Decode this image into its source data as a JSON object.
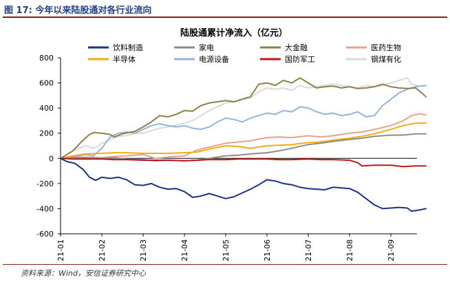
{
  "figure": {
    "title": "图 17:  今年以来陆股通对各行业流向",
    "source": "资料来源：Wind，安信证券研究中心"
  },
  "chart_data": {
    "type": "line",
    "title": "陆股通累计净流入（亿元）",
    "xlabel": "",
    "ylabel": "",
    "ylim": [
      -600,
      800
    ],
    "yticks": [
      "800",
      "600",
      "400",
      "200",
      "0",
      "-200",
      "-400",
      "-600"
    ],
    "xticks": [
      "21-01",
      "21-02",
      "21-03",
      "21-04",
      "21-05",
      "21-06",
      "21-07",
      "21-08",
      "21-09"
    ],
    "grid": false,
    "legend": "top",
    "x_note": "x values are fractional months since 21-01 (0 = 21-01, 8 = 21-09)",
    "series": [
      {
        "name": "饮料制造",
        "color": "#1a2f8c",
        "points": [
          [
            0,
            0
          ],
          [
            0.15,
            -25
          ],
          [
            0.35,
            -40
          ],
          [
            0.55,
            -90
          ],
          [
            0.7,
            -150
          ],
          [
            0.85,
            -175
          ],
          [
            1.0,
            -150
          ],
          [
            1.2,
            -160
          ],
          [
            1.4,
            -150
          ],
          [
            1.6,
            -170
          ],
          [
            1.8,
            -210
          ],
          [
            2.0,
            -215
          ],
          [
            2.2,
            -200
          ],
          [
            2.4,
            -230
          ],
          [
            2.6,
            -245
          ],
          [
            2.8,
            -240
          ],
          [
            3.0,
            -265
          ],
          [
            3.2,
            -310
          ],
          [
            3.4,
            -300
          ],
          [
            3.6,
            -280
          ],
          [
            3.8,
            -300
          ],
          [
            4.0,
            -320
          ],
          [
            4.2,
            -305
          ],
          [
            4.4,
            -275
          ],
          [
            4.6,
            -245
          ],
          [
            4.8,
            -210
          ],
          [
            5.0,
            -170
          ],
          [
            5.2,
            -180
          ],
          [
            5.4,
            -200
          ],
          [
            5.6,
            -210
          ],
          [
            5.8,
            -230
          ],
          [
            6.0,
            -240
          ],
          [
            6.2,
            -245
          ],
          [
            6.4,
            -250
          ],
          [
            6.6,
            -230
          ],
          [
            6.8,
            -235
          ],
          [
            7.0,
            -240
          ],
          [
            7.2,
            -270
          ],
          [
            7.4,
            -320
          ],
          [
            7.6,
            -370
          ],
          [
            7.8,
            -400
          ],
          [
            8.0,
            -395
          ],
          [
            8.2,
            -390
          ],
          [
            8.4,
            -395
          ],
          [
            8.5,
            -420
          ],
          [
            8.7,
            -410
          ],
          [
            8.85,
            -400
          ]
        ]
      },
      {
        "name": "家电",
        "color": "#8c8c8c",
        "points": [
          [
            0,
            0
          ],
          [
            0.3,
            5
          ],
          [
            0.6,
            5
          ],
          [
            1.0,
            0
          ],
          [
            1.3,
            5
          ],
          [
            1.6,
            -5
          ],
          [
            2.0,
            -10
          ],
          [
            2.3,
            -20
          ],
          [
            2.6,
            -15
          ],
          [
            3.0,
            -20
          ],
          [
            3.3,
            -15
          ],
          [
            3.6,
            0
          ],
          [
            4.0,
            20
          ],
          [
            4.3,
            25
          ],
          [
            4.6,
            35
          ],
          [
            5.0,
            45
          ],
          [
            5.3,
            60
          ],
          [
            5.6,
            80
          ],
          [
            6.0,
            110
          ],
          [
            6.3,
            120
          ],
          [
            6.6,
            135
          ],
          [
            7.0,
            150
          ],
          [
            7.3,
            160
          ],
          [
            7.6,
            175
          ],
          [
            8.0,
            185
          ],
          [
            8.3,
            185
          ],
          [
            8.6,
            195
          ],
          [
            8.85,
            195
          ]
        ]
      },
      {
        "name": "大金融",
        "color": "#8c8046",
        "points": [
          [
            0,
            0
          ],
          [
            0.3,
            60
          ],
          [
            0.5,
            130
          ],
          [
            0.7,
            190
          ],
          [
            0.8,
            205
          ],
          [
            1.0,
            200
          ],
          [
            1.2,
            190
          ],
          [
            1.3,
            170
          ],
          [
            1.5,
            195
          ],
          [
            1.8,
            215
          ],
          [
            2.0,
            250
          ],
          [
            2.2,
            290
          ],
          [
            2.4,
            340
          ],
          [
            2.6,
            330
          ],
          [
            2.8,
            350
          ],
          [
            3.0,
            380
          ],
          [
            3.2,
            375
          ],
          [
            3.4,
            420
          ],
          [
            3.6,
            440
          ],
          [
            3.8,
            450
          ],
          [
            4.0,
            460
          ],
          [
            4.2,
            450
          ],
          [
            4.4,
            470
          ],
          [
            4.6,
            490
          ],
          [
            4.8,
            590
          ],
          [
            5.0,
            600
          ],
          [
            5.2,
            580
          ],
          [
            5.4,
            620
          ],
          [
            5.6,
            600
          ],
          [
            5.8,
            640
          ],
          [
            6.0,
            600
          ],
          [
            6.2,
            560
          ],
          [
            6.4,
            570
          ],
          [
            6.6,
            575
          ],
          [
            6.8,
            560
          ],
          [
            7.0,
            570
          ],
          [
            7.2,
            555
          ],
          [
            7.4,
            560
          ],
          [
            7.6,
            570
          ],
          [
            7.8,
            590
          ],
          [
            8.0,
            570
          ],
          [
            8.2,
            560
          ],
          [
            8.4,
            555
          ],
          [
            8.6,
            560
          ],
          [
            8.75,
            520
          ],
          [
            8.85,
            490
          ]
        ]
      },
      {
        "name": "医药生物",
        "color": "#e8a088",
        "points": [
          [
            0,
            0
          ],
          [
            0.3,
            5
          ],
          [
            0.6,
            10
          ],
          [
            1.0,
            5
          ],
          [
            1.3,
            15
          ],
          [
            1.6,
            20
          ],
          [
            2.0,
            30
          ],
          [
            2.3,
            0
          ],
          [
            2.6,
            10
          ],
          [
            3.0,
            20
          ],
          [
            3.3,
            65
          ],
          [
            3.6,
            90
          ],
          [
            4.0,
            120
          ],
          [
            4.3,
            130
          ],
          [
            4.6,
            140
          ],
          [
            5.0,
            165
          ],
          [
            5.3,
            170
          ],
          [
            5.6,
            165
          ],
          [
            6.0,
            180
          ],
          [
            6.3,
            170
          ],
          [
            6.6,
            180
          ],
          [
            7.0,
            200
          ],
          [
            7.3,
            210
          ],
          [
            7.6,
            230
          ],
          [
            8.0,
            260
          ],
          [
            8.3,
            300
          ],
          [
            8.5,
            340
          ],
          [
            8.7,
            355
          ],
          [
            8.85,
            345
          ]
        ]
      },
      {
        "name": "半导体",
        "color": "#f5aa10",
        "points": [
          [
            0,
            0
          ],
          [
            0.3,
            20
          ],
          [
            0.6,
            35
          ],
          [
            1.0,
            40
          ],
          [
            1.3,
            45
          ],
          [
            1.6,
            45
          ],
          [
            2.0,
            40
          ],
          [
            2.3,
            40
          ],
          [
            2.6,
            40
          ],
          [
            3.0,
            45
          ],
          [
            3.3,
            50
          ],
          [
            3.6,
            75
          ],
          [
            4.0,
            100
          ],
          [
            4.3,
            95
          ],
          [
            4.6,
            80
          ],
          [
            5.0,
            100
          ],
          [
            5.3,
            105
          ],
          [
            5.6,
            110
          ],
          [
            6.0,
            125
          ],
          [
            6.3,
            130
          ],
          [
            6.6,
            145
          ],
          [
            7.0,
            160
          ],
          [
            7.3,
            175
          ],
          [
            7.6,
            195
          ],
          [
            8.0,
            230
          ],
          [
            8.3,
            260
          ],
          [
            8.6,
            280
          ],
          [
            8.85,
            280
          ]
        ]
      },
      {
        "name": "电源设备",
        "color": "#93b4da",
        "points": [
          [
            0,
            0
          ],
          [
            0.3,
            10
          ],
          [
            0.6,
            30
          ],
          [
            0.8,
            20
          ],
          [
            1.0,
            80
          ],
          [
            1.2,
            170
          ],
          [
            1.4,
            200
          ],
          [
            1.6,
            210
          ],
          [
            1.8,
            200
          ],
          [
            2.0,
            230
          ],
          [
            2.2,
            260
          ],
          [
            2.4,
            275
          ],
          [
            2.6,
            260
          ],
          [
            2.8,
            250
          ],
          [
            3.0,
            260
          ],
          [
            3.2,
            240
          ],
          [
            3.4,
            230
          ],
          [
            3.6,
            250
          ],
          [
            3.8,
            290
          ],
          [
            4.0,
            320
          ],
          [
            4.2,
            310
          ],
          [
            4.4,
            290
          ],
          [
            4.6,
            320
          ],
          [
            4.8,
            340
          ],
          [
            5.0,
            360
          ],
          [
            5.2,
            350
          ],
          [
            5.4,
            380
          ],
          [
            5.6,
            370
          ],
          [
            5.8,
            410
          ],
          [
            6.0,
            400
          ],
          [
            6.2,
            370
          ],
          [
            6.4,
            350
          ],
          [
            6.6,
            360
          ],
          [
            6.8,
            340
          ],
          [
            7.0,
            350
          ],
          [
            7.2,
            370
          ],
          [
            7.4,
            330
          ],
          [
            7.6,
            340
          ],
          [
            7.8,
            420
          ],
          [
            8.0,
            470
          ],
          [
            8.2,
            520
          ],
          [
            8.4,
            550
          ],
          [
            8.6,
            570
          ],
          [
            8.85,
            580
          ]
        ]
      },
      {
        "name": "国防军工",
        "color": "#c0151b",
        "points": [
          [
            0,
            0
          ],
          [
            0.3,
            -5
          ],
          [
            0.6,
            -5
          ],
          [
            1.0,
            -5
          ],
          [
            1.3,
            -10
          ],
          [
            1.6,
            -10
          ],
          [
            2.0,
            -15
          ],
          [
            2.3,
            -15
          ],
          [
            2.6,
            -15
          ],
          [
            3.0,
            -20
          ],
          [
            3.3,
            -15
          ],
          [
            3.6,
            -10
          ],
          [
            4.0,
            -10
          ],
          [
            4.3,
            -5
          ],
          [
            4.6,
            -5
          ],
          [
            5.0,
            -5
          ],
          [
            5.3,
            -10
          ],
          [
            5.6,
            -10
          ],
          [
            6.0,
            -5
          ],
          [
            6.3,
            -10
          ],
          [
            6.6,
            -10
          ],
          [
            7.0,
            -15
          ],
          [
            7.2,
            -35
          ],
          [
            7.3,
            -60
          ],
          [
            7.6,
            -55
          ],
          [
            8.0,
            -55
          ],
          [
            8.3,
            -65
          ],
          [
            8.6,
            -60
          ],
          [
            8.85,
            -60
          ]
        ]
      },
      {
        "name": "钢煤有化",
        "color": "#d9d9d9",
        "points": [
          [
            0,
            0
          ],
          [
            0.3,
            60
          ],
          [
            0.6,
            100
          ],
          [
            0.8,
            80
          ],
          [
            1.0,
            120
          ],
          [
            1.2,
            150
          ],
          [
            1.4,
            175
          ],
          [
            1.6,
            180
          ],
          [
            1.8,
            200
          ],
          [
            2.0,
            200
          ],
          [
            2.2,
            220
          ],
          [
            2.4,
            240
          ],
          [
            2.6,
            250
          ],
          [
            2.8,
            265
          ],
          [
            3.0,
            280
          ],
          [
            3.2,
            300
          ],
          [
            3.4,
            340
          ],
          [
            3.6,
            380
          ],
          [
            3.8,
            410
          ],
          [
            4.0,
            440
          ],
          [
            4.2,
            450
          ],
          [
            4.4,
            470
          ],
          [
            4.6,
            480
          ],
          [
            4.8,
            530
          ],
          [
            5.0,
            560
          ],
          [
            5.2,
            550
          ],
          [
            5.4,
            560
          ],
          [
            5.6,
            540
          ],
          [
            5.8,
            580
          ],
          [
            6.0,
            560
          ],
          [
            6.2,
            570
          ],
          [
            6.4,
            580
          ],
          [
            6.6,
            590
          ],
          [
            6.8,
            580
          ],
          [
            7.0,
            570
          ],
          [
            7.2,
            560
          ],
          [
            7.4,
            580
          ],
          [
            7.6,
            570
          ],
          [
            7.8,
            580
          ],
          [
            8.0,
            600
          ],
          [
            8.2,
            620
          ],
          [
            8.4,
            640
          ],
          [
            8.5,
            590
          ],
          [
            8.7,
            575
          ],
          [
            8.85,
            580
          ]
        ]
      }
    ]
  }
}
